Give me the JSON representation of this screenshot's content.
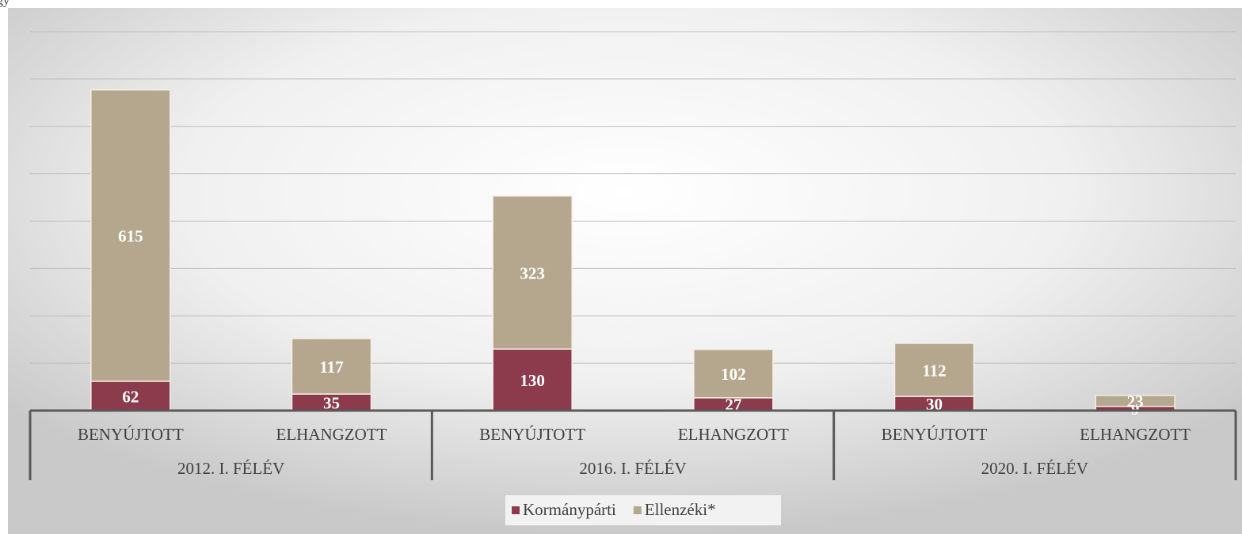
{
  "chart_data": {
    "type": "stacked_bar",
    "title": "gy",
    "categories": [
      "BENYÚJTOTT",
      "ELHANGZOTT",
      "BENYÚJTOTT",
      "ELHANGZOTT",
      "BENYÚJTOTT",
      "ELHANGZOTT"
    ],
    "groups": [
      "2012. I. FÉLÉV",
      "2016. I. FÉLÉV",
      "2020. I. FÉLÉV"
    ],
    "series": [
      {
        "name": "Kormánypárti",
        "color": "#8c3b4c",
        "values": [
          62,
          35,
          130,
          27,
          30,
          9
        ]
      },
      {
        "name": "Ellenzéki*",
        "color": "#b4a78e",
        "values": [
          615,
          117,
          323,
          102,
          112,
          23
        ]
      }
    ],
    "ylim": [
      0,
      800
    ],
    "yticks": [
      0,
      100,
      200,
      300,
      400,
      500,
      600,
      700,
      800
    ],
    "grid": true,
    "legend": "bottom"
  }
}
